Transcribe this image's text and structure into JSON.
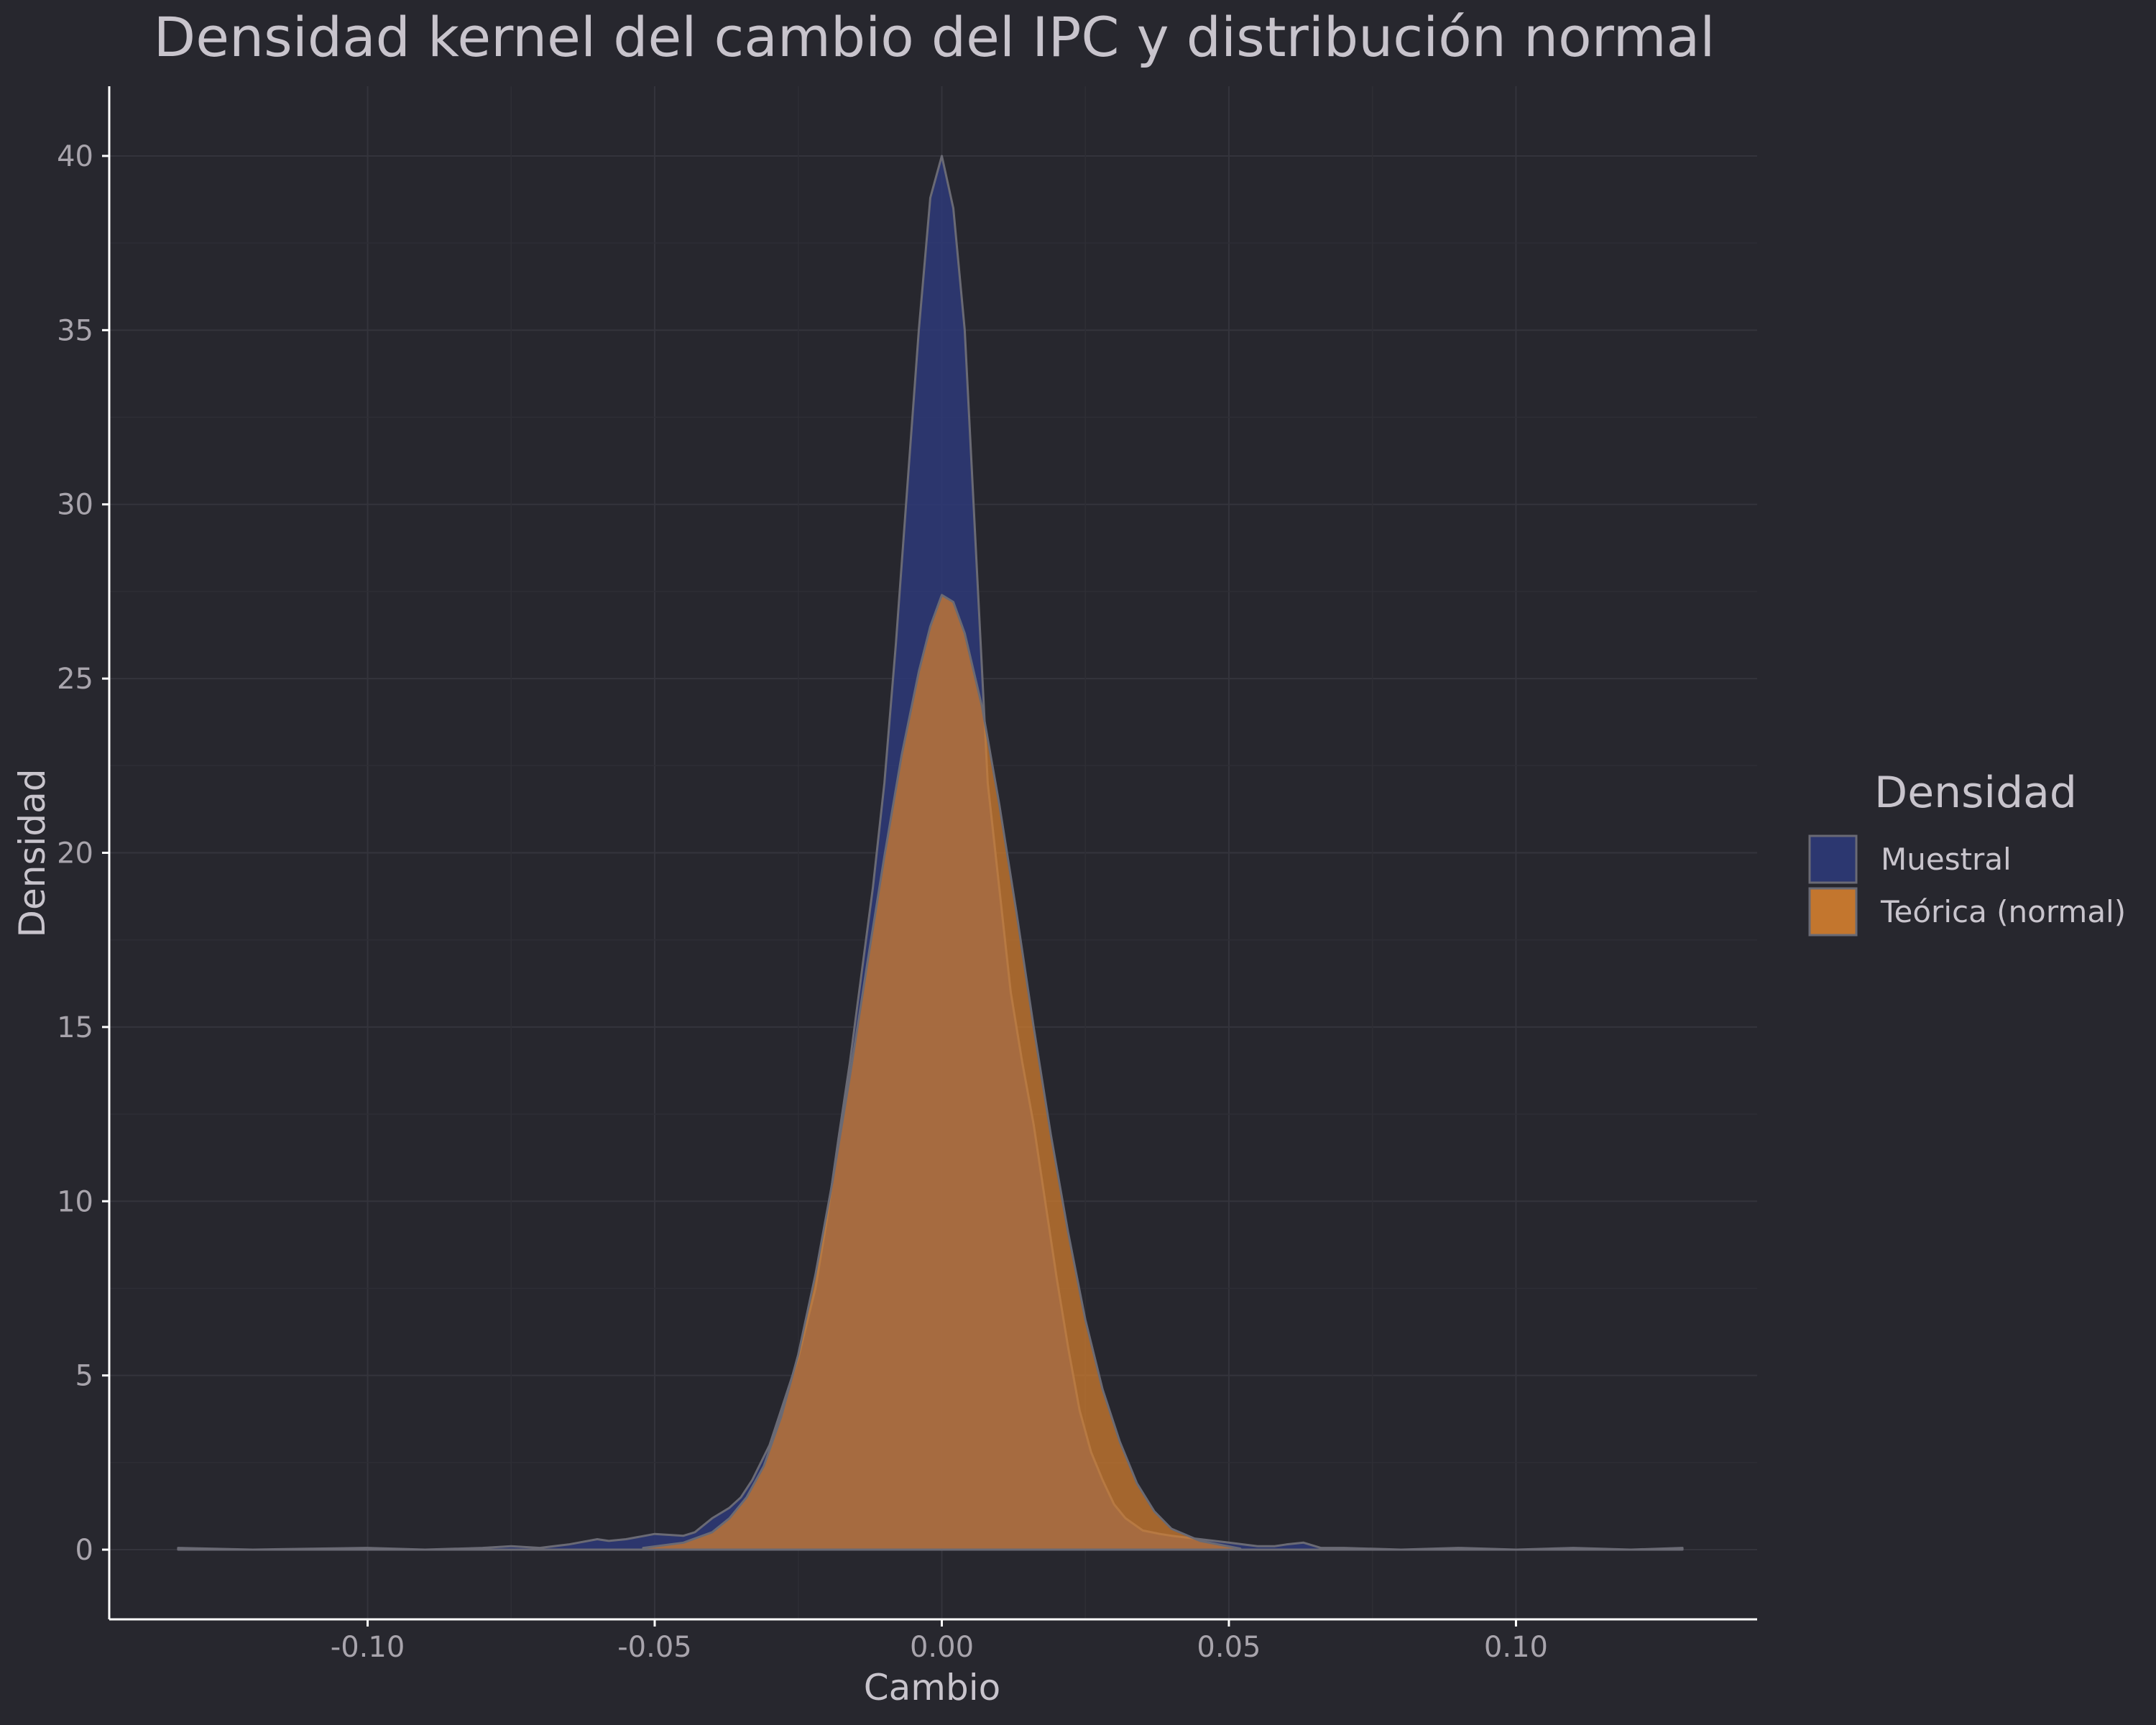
{
  "chart_data": {
    "type": "area",
    "title": "Densidad kernel del cambio del IPC y distribución normal",
    "xlabel": "Cambio",
    "ylabel": "Densidad",
    "xlim": [
      -0.145,
      0.142
    ],
    "ylim": [
      -2,
      42
    ],
    "xticks": [
      -0.1,
      -0.05,
      0.0,
      0.05,
      0.1
    ],
    "xtick_labels": [
      "-0.10",
      "-0.05",
      "0.00",
      "0.05",
      "0.10"
    ],
    "yticks": [
      0,
      5,
      10,
      15,
      20,
      25,
      30,
      35,
      40
    ],
    "ytick_labels": [
      "0",
      "5",
      "10",
      "15",
      "20",
      "25",
      "30",
      "35",
      "40"
    ],
    "grid": true,
    "legend": {
      "title": "Densidad",
      "placement": "right"
    },
    "series": [
      {
        "name": "Muestral",
        "color": "#2e3a78",
        "x": [
          -0.133,
          -0.12,
          -0.1,
          -0.09,
          -0.08,
          -0.075,
          -0.07,
          -0.065,
          -0.06,
          -0.058,
          -0.055,
          -0.05,
          -0.045,
          -0.043,
          -0.04,
          -0.037,
          -0.035,
          -0.033,
          -0.03,
          -0.028,
          -0.025,
          -0.022,
          -0.02,
          -0.018,
          -0.016,
          -0.014,
          -0.012,
          -0.01,
          -0.008,
          -0.006,
          -0.004,
          -0.002,
          0.0,
          0.002,
          0.004,
          0.006,
          0.008,
          0.01,
          0.012,
          0.014,
          0.016,
          0.018,
          0.02,
          0.022,
          0.024,
          0.026,
          0.028,
          0.03,
          0.032,
          0.035,
          0.038,
          0.04,
          0.045,
          0.05,
          0.055,
          0.058,
          0.06,
          0.063,
          0.066,
          0.07,
          0.08,
          0.09,
          0.1,
          0.11,
          0.12,
          0.129
        ],
        "y": [
          0.05,
          0.0,
          0.05,
          0.0,
          0.05,
          0.1,
          0.05,
          0.15,
          0.3,
          0.25,
          0.3,
          0.45,
          0.4,
          0.5,
          0.9,
          1.2,
          1.5,
          2.0,
          3.0,
          4.0,
          5.5,
          7.5,
          9.5,
          11.8,
          14.0,
          16.5,
          19.0,
          22.0,
          26.0,
          30.5,
          35.0,
          38.8,
          40.0,
          38.5,
          35.0,
          28.5,
          22.0,
          19.0,
          16.0,
          14.0,
          12.2,
          10.0,
          7.8,
          5.8,
          4.0,
          2.8,
          2.0,
          1.3,
          0.9,
          0.55,
          0.45,
          0.4,
          0.3,
          0.2,
          0.1,
          0.1,
          0.15,
          0.2,
          0.05,
          0.05,
          0.0,
          0.05,
          0.0,
          0.05,
          0.0,
          0.05
        ]
      },
      {
        "name": "Teórica (normal)",
        "color": "#d5802f",
        "x": [
          -0.052,
          -0.045,
          -0.04,
          -0.037,
          -0.034,
          -0.031,
          -0.028,
          -0.025,
          -0.022,
          -0.019,
          -0.016,
          -0.013,
          -0.01,
          -0.007,
          -0.004,
          -0.002,
          0.0,
          0.002,
          0.004,
          0.007,
          0.01,
          0.013,
          0.016,
          0.019,
          0.022,
          0.025,
          0.028,
          0.031,
          0.034,
          0.037,
          0.04,
          0.045,
          0.052
        ],
        "y": [
          0.05,
          0.2,
          0.5,
          0.9,
          1.5,
          2.4,
          3.8,
          5.6,
          7.9,
          10.6,
          13.6,
          16.8,
          19.9,
          22.8,
          25.2,
          26.5,
          27.4,
          27.2,
          26.3,
          24.2,
          21.4,
          18.3,
          15.0,
          11.9,
          9.1,
          6.6,
          4.6,
          3.1,
          1.9,
          1.1,
          0.6,
          0.25,
          0.03
        ]
      }
    ]
  }
}
